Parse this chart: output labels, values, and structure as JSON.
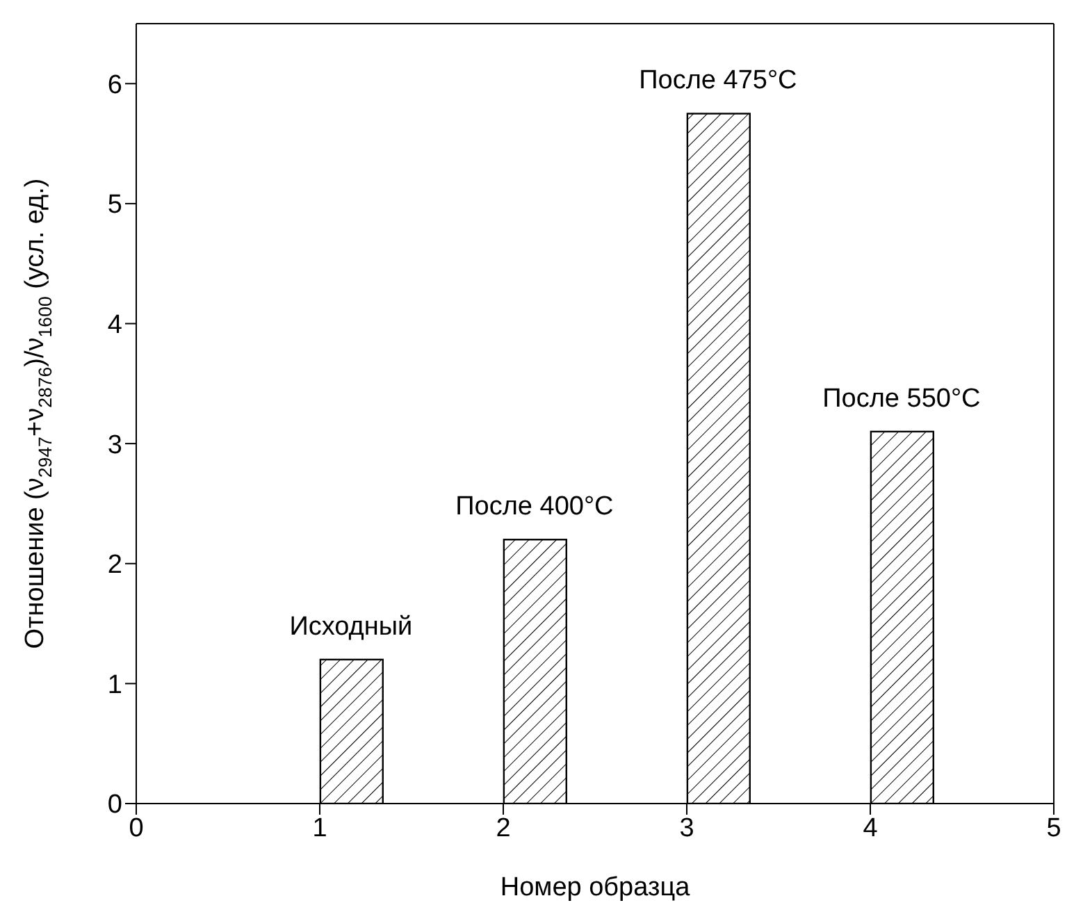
{
  "chart_data": {
    "type": "bar",
    "xlabel": "Номер образца",
    "ylabel": "Отношение (ν$_{2947}$+ν$_{2876}$)/ν$_{1600}$ (усл. ед.)",
    "x": [
      1.17,
      2.17,
      3.17,
      4.17
    ],
    "series": [
      {
        "color": "#000000",
        "values": [
          1.2,
          2.2,
          5.75,
          3.1
        ]
      }
    ],
    "xlim": [
      0,
      5
    ],
    "xticks": [
      0,
      1,
      2,
      3,
      4,
      5
    ],
    "ylim": [
      0,
      6.5
    ],
    "yticks": [
      0,
      1,
      2,
      3,
      4,
      5,
      6
    ],
    "grid": false,
    "legend": false,
    "annotations": [
      {
        "text": "Исходный",
        "x": 1.17,
        "y": 1.2
      },
      {
        "text": "После 400°C",
        "x": 2.17,
        "y": 2.2
      },
      {
        "text": "После 475°C",
        "x": 3.17,
        "y": 5.75
      },
      {
        "text": "После 550°C",
        "x": 4.17,
        "y": 3.1
      }
    ]
  }
}
